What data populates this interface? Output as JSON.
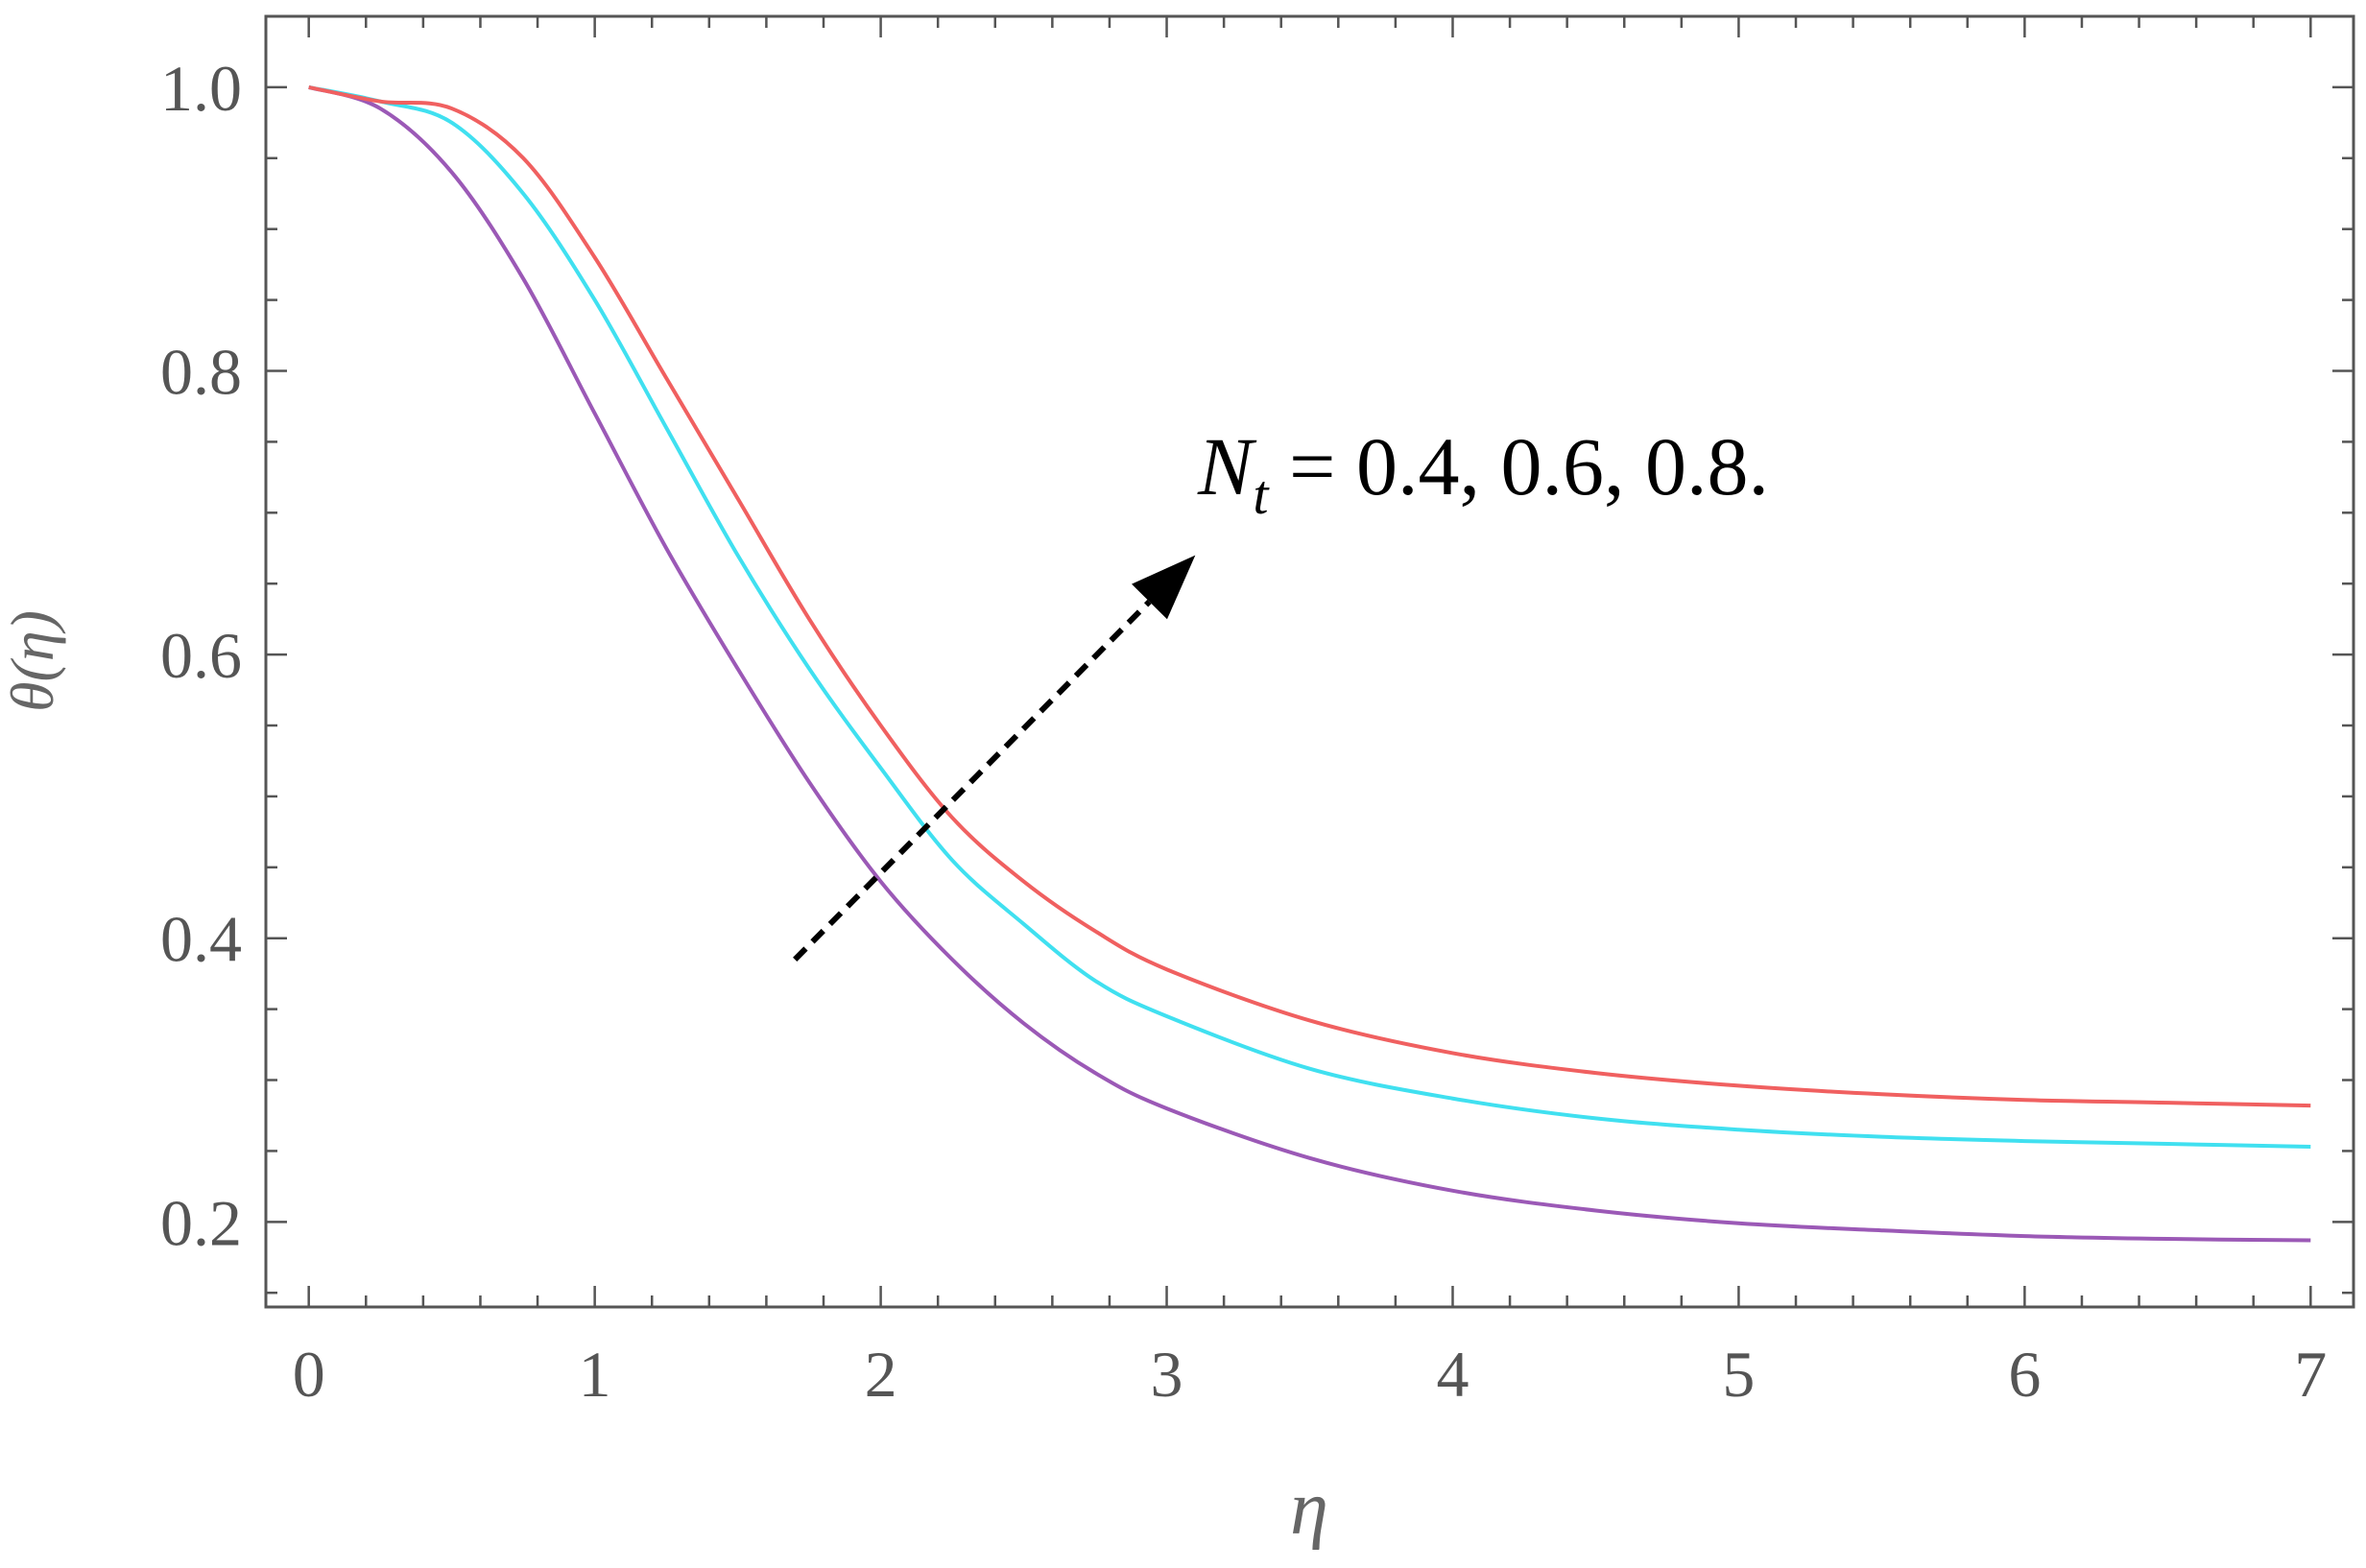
{
  "chart_data": {
    "type": "line",
    "title": "",
    "xlabel": "η",
    "ylabel": "θ(η)",
    "xlim": [
      -0.15,
      7.15
    ],
    "ylim": [
      0.14,
      1.05
    ],
    "xticks": [
      "0",
      "1",
      "2",
      "3",
      "4",
      "5",
      "6",
      "7"
    ],
    "yticks": [
      "0.2",
      "0.4",
      "0.6",
      "0.8",
      "1.0"
    ],
    "grid": false,
    "legend": "none",
    "annotation": {
      "text_symbol": "N",
      "text_subscript": "t",
      "text_values": " = 0.4, 0.6, 0.8.",
      "arrow_from": [
        1.7,
        0.385
      ],
      "arrow_to": [
        3.1,
        0.67
      ]
    },
    "x": [
      0,
      0.25,
      0.5,
      0.75,
      1,
      1.25,
      1.5,
      1.75,
      2,
      2.25,
      2.5,
      2.75,
      3,
      3.5,
      4,
      4.5,
      5,
      5.5,
      6,
      6.5,
      7
    ],
    "series": [
      {
        "color": "#9b59b6",
        "values": [
          1.0,
          0.985,
          0.94,
          0.865,
          0.77,
          0.675,
          0.59,
          0.51,
          0.44,
          0.385,
          0.34,
          0.305,
          0.28,
          0.245,
          0.222,
          0.208,
          0.199,
          0.194,
          0.19,
          0.188,
          0.187
        ]
      },
      {
        "color": "#40e0f0",
        "values": [
          1.0,
          0.99,
          0.975,
          0.925,
          0.85,
          0.76,
          0.67,
          0.59,
          0.52,
          0.455,
          0.41,
          0.37,
          0.345,
          0.308,
          0.287,
          0.273,
          0.265,
          0.26,
          0.257,
          0.255,
          0.253
        ]
      },
      {
        "color": "#f06060",
        "values": [
          1.0,
          0.99,
          0.985,
          0.95,
          0.88,
          0.795,
          0.71,
          0.625,
          0.55,
          0.485,
          0.44,
          0.405,
          0.378,
          0.342,
          0.319,
          0.305,
          0.296,
          0.29,
          0.286,
          0.284,
          0.282
        ]
      }
    ]
  }
}
